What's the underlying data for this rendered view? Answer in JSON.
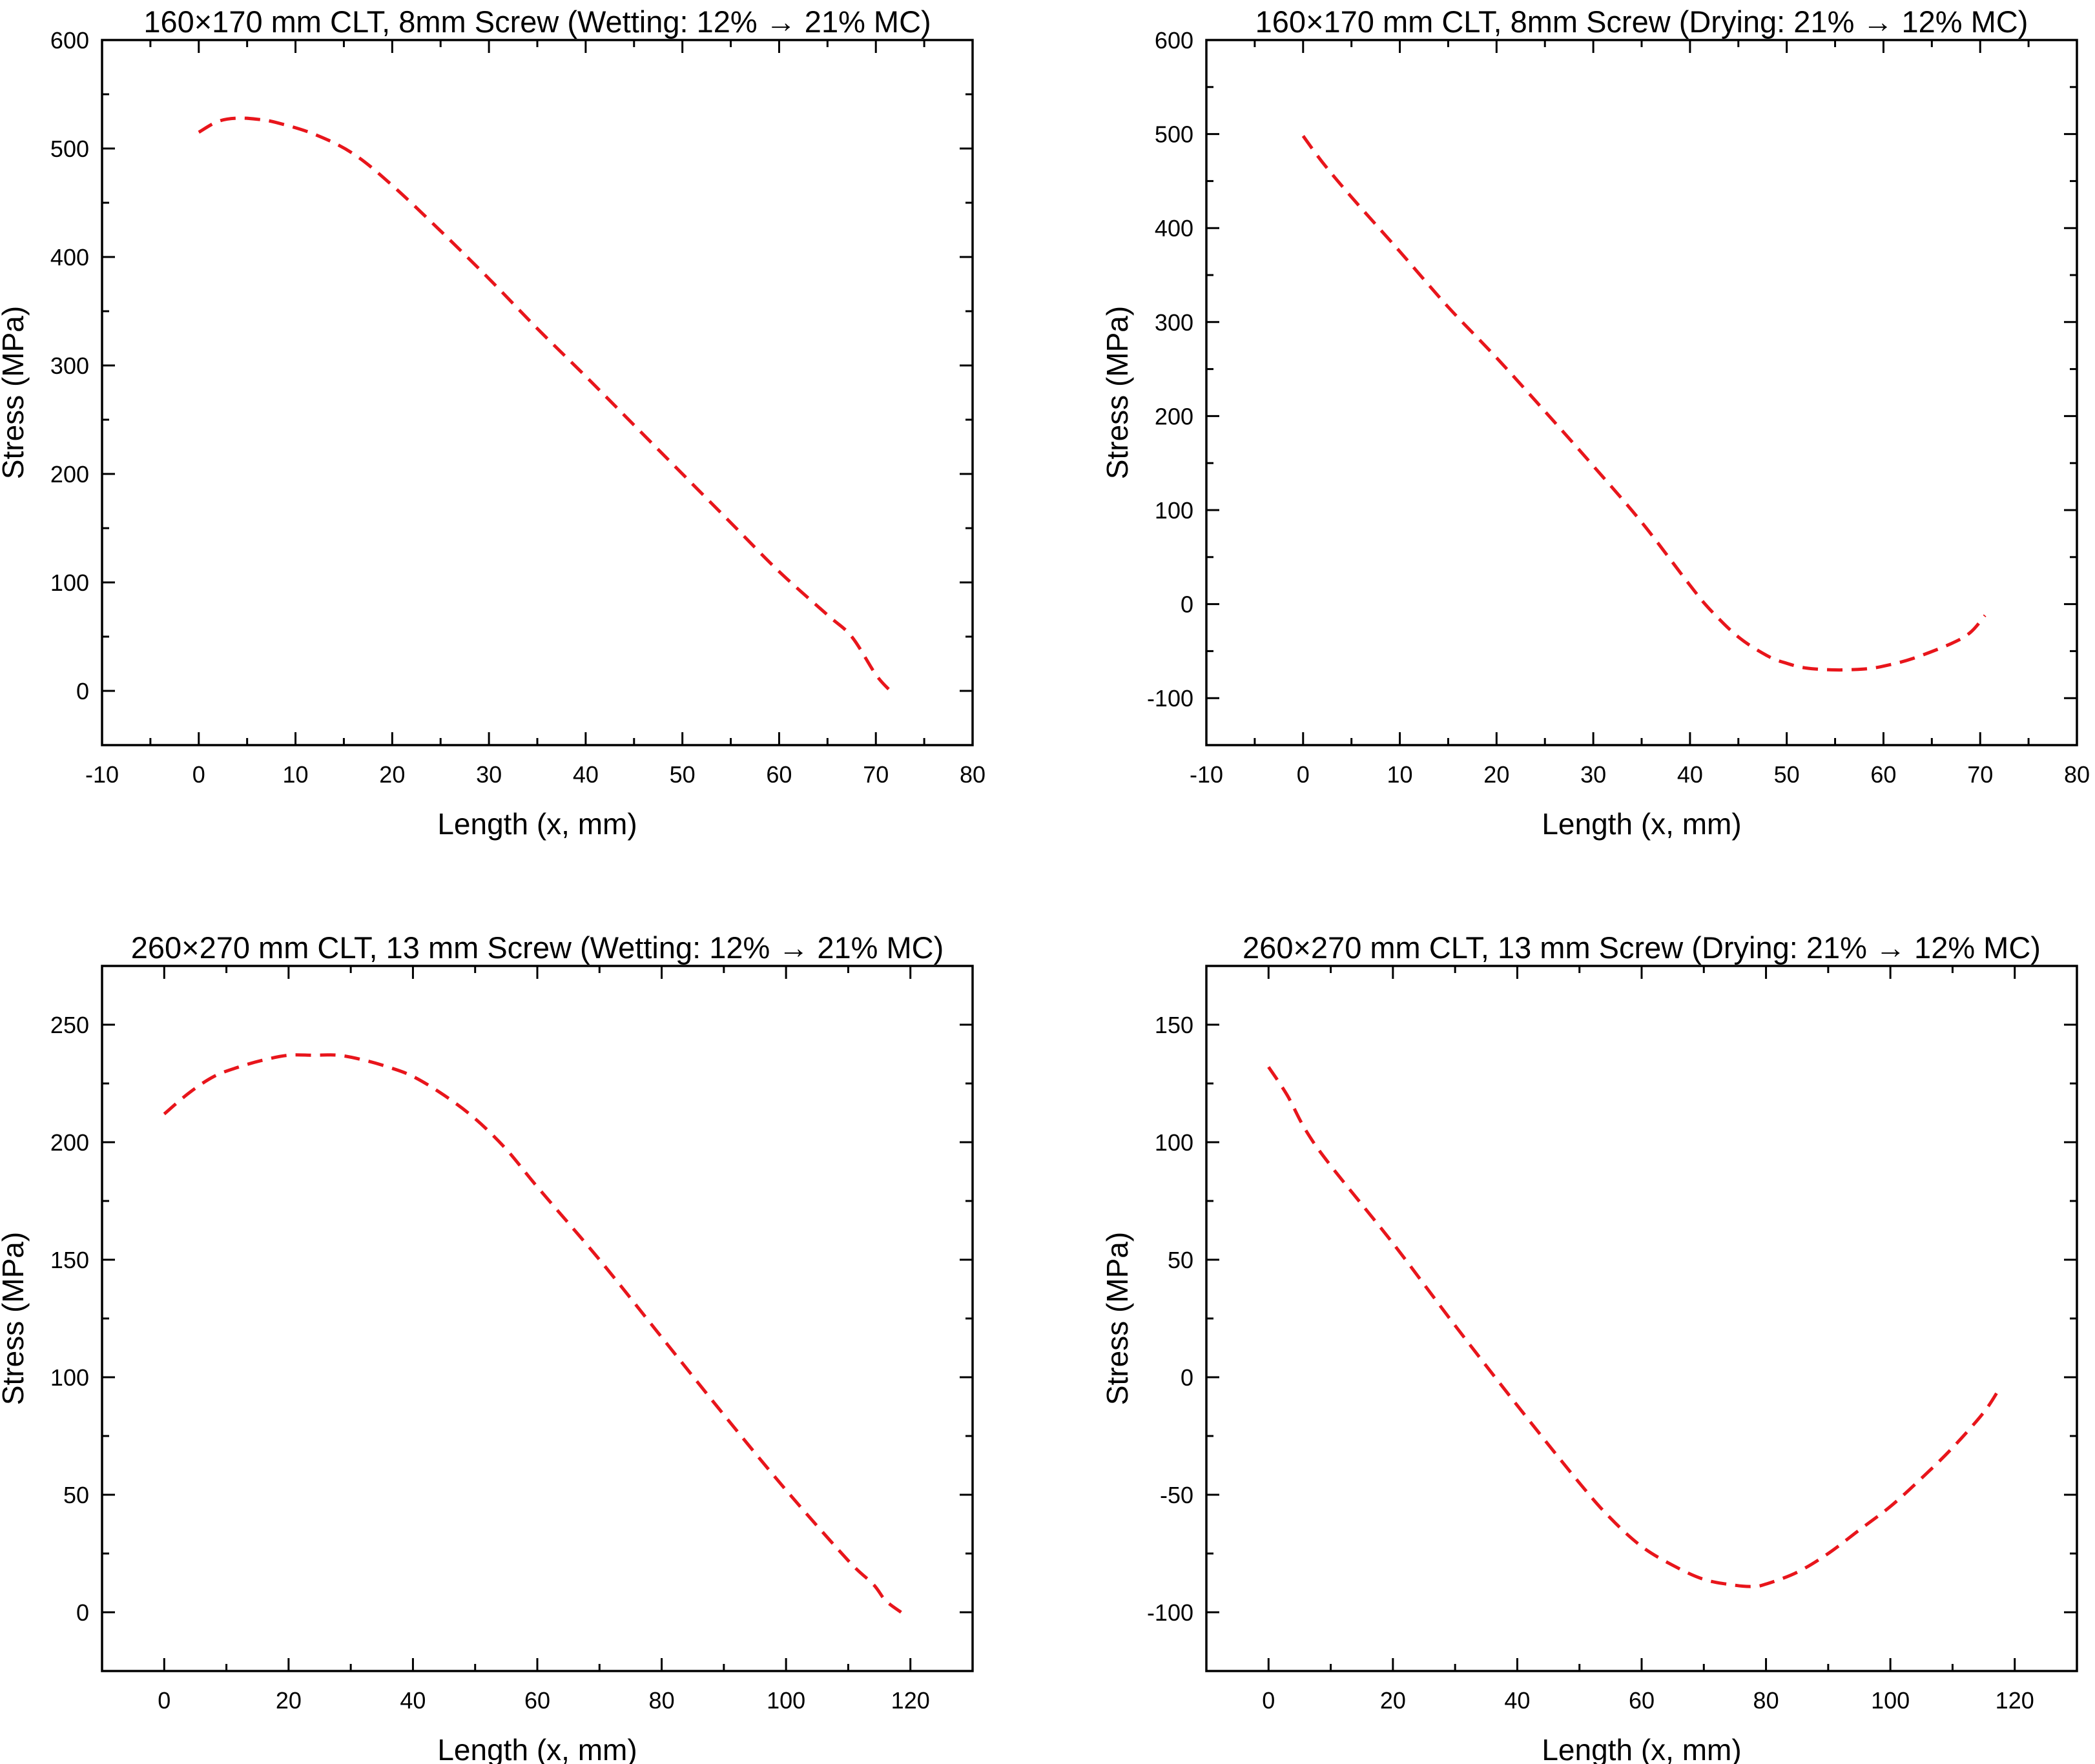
{
  "chart_data": [
    {
      "type": "line",
      "title": "160×170 mm CLT, 8mm Screw (Wetting: 12% → 21% MC)",
      "xlabel": "Length (x, mm)",
      "ylabel": "Stress (MPa)",
      "xlim": [
        -10,
        80
      ],
      "ylim": [
        -50,
        600
      ],
      "xticks": [
        -10,
        0,
        10,
        20,
        30,
        40,
        50,
        60,
        70,
        80
      ],
      "yticks": [
        0,
        100,
        200,
        300,
        400,
        500,
        600
      ],
      "color": "#e8151b",
      "series": [
        {
          "name": "stress",
          "x": [
            0,
            2,
            4,
            6,
            8,
            12,
            16,
            20,
            25,
            30,
            35,
            40,
            45,
            50,
            55,
            60,
            65,
            67.5,
            70,
            71.5
          ],
          "y": [
            515,
            525,
            528,
            527,
            524,
            513,
            495,
            466,
            424,
            380,
            334,
            290,
            245,
            200,
            155,
            110,
            70,
            50,
            15,
            0
          ]
        }
      ]
    },
    {
      "type": "line",
      "title": "160×170 mm CLT, 8mm Screw (Drying: 21% → 12% MC)",
      "xlabel": "Length (x, mm)",
      "ylabel": "Stress (MPa)",
      "xlim": [
        -10,
        80
      ],
      "ylim": [
        -150,
        600
      ],
      "xticks": [
        -10,
        0,
        10,
        20,
        30,
        40,
        50,
        60,
        70,
        80
      ],
      "yticks": [
        -100,
        0,
        100,
        200,
        300,
        400,
        500,
        600
      ],
      "color": "#e8151b",
      "series": [
        {
          "name": "stress",
          "x": [
            0,
            2,
            5,
            10,
            15,
            20,
            25,
            30,
            35,
            40,
            42,
            45,
            48,
            50,
            52,
            55,
            58,
            60,
            63,
            67,
            69,
            70.5
          ],
          "y": [
            498,
            470,
            433,
            375,
            316,
            262,
            205,
            147,
            87,
            20,
            -5,
            -35,
            -55,
            -63,
            -68,
            -70,
            -69,
            -66,
            -58,
            -42,
            -30,
            -12
          ]
        }
      ]
    },
    {
      "type": "line",
      "title": "260×270 mm CLT, 13 mm Screw (Wetting: 12% → 21% MC)",
      "xlabel": "Length (x, mm)",
      "ylabel": "Stress (MPa)",
      "xlim": [
        -10,
        130
      ],
      "ylim": [
        -25,
        275
      ],
      "xticks": [
        0,
        20,
        40,
        60,
        80,
        100,
        120
      ],
      "yticks": [
        0,
        50,
        100,
        150,
        200,
        250
      ],
      "color": "#e8151b",
      "series": [
        {
          "name": "stress",
          "x": [
            0,
            4,
            8,
            12,
            16,
            20,
            24,
            28,
            32,
            36,
            40,
            45,
            50,
            55,
            60,
            70,
            80,
            90,
            100,
            110,
            114,
            116,
            118.5
          ],
          "y": [
            212,
            221,
            228,
            232,
            235,
            237,
            237,
            237,
            235,
            232,
            228,
            220,
            210,
            197,
            181,
            150,
            117,
            84,
            52,
            22,
            12,
            5,
            0
          ]
        }
      ]
    },
    {
      "type": "line",
      "title": "260×270 mm CLT, 13 mm Screw (Drying: 21% → 12% MC)",
      "xlabel": "Length (x, mm)",
      "ylabel": "Stress (MPa)",
      "xlim": [
        -10,
        130
      ],
      "ylim": [
        -125,
        175
      ],
      "xticks": [
        0,
        20,
        40,
        60,
        80,
        100,
        120
      ],
      "yticks": [
        -100,
        -50,
        0,
        50,
        100,
        150
      ],
      "color": "#e8151b",
      "series": [
        {
          "name": "stress",
          "x": [
            0,
            3,
            6,
            10,
            20,
            30,
            40,
            50,
            55,
            60,
            65,
            70,
            75,
            78,
            80,
            85,
            90,
            95,
            100,
            105,
            110,
            115,
            117.5
          ],
          "y": [
            132,
            120,
            105,
            90,
            57,
            22,
            -12,
            -45,
            -60,
            -72,
            -80,
            -86,
            -88.5,
            -89,
            -88,
            -83,
            -75,
            -65,
            -55,
            -43,
            -30,
            -15,
            -5
          ]
        }
      ]
    }
  ]
}
